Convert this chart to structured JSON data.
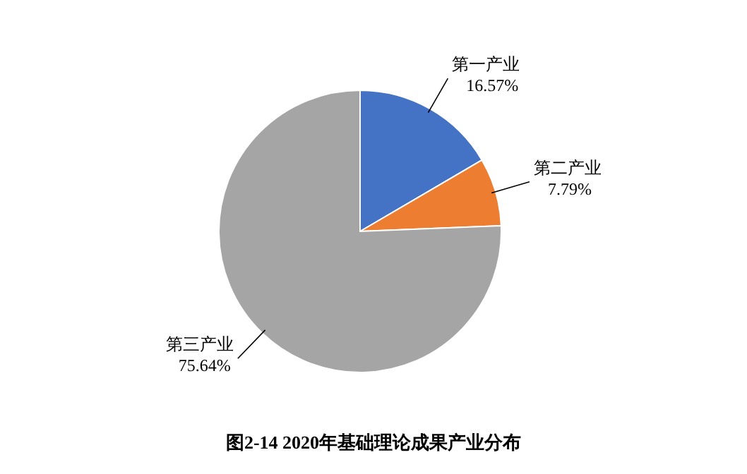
{
  "chart_data": {
    "type": "pie",
    "title": "图2-14  2020年基础理论成果产业分布",
    "categories": [
      "第一产业",
      "第二产业",
      "第三产业"
    ],
    "values": [
      16.57,
      7.79,
      75.64
    ],
    "value_labels": [
      "16.57%",
      "7.79%",
      "75.64%"
    ],
    "colors": [
      "#4472c4",
      "#ed7d31",
      "#a5a5a5"
    ]
  }
}
